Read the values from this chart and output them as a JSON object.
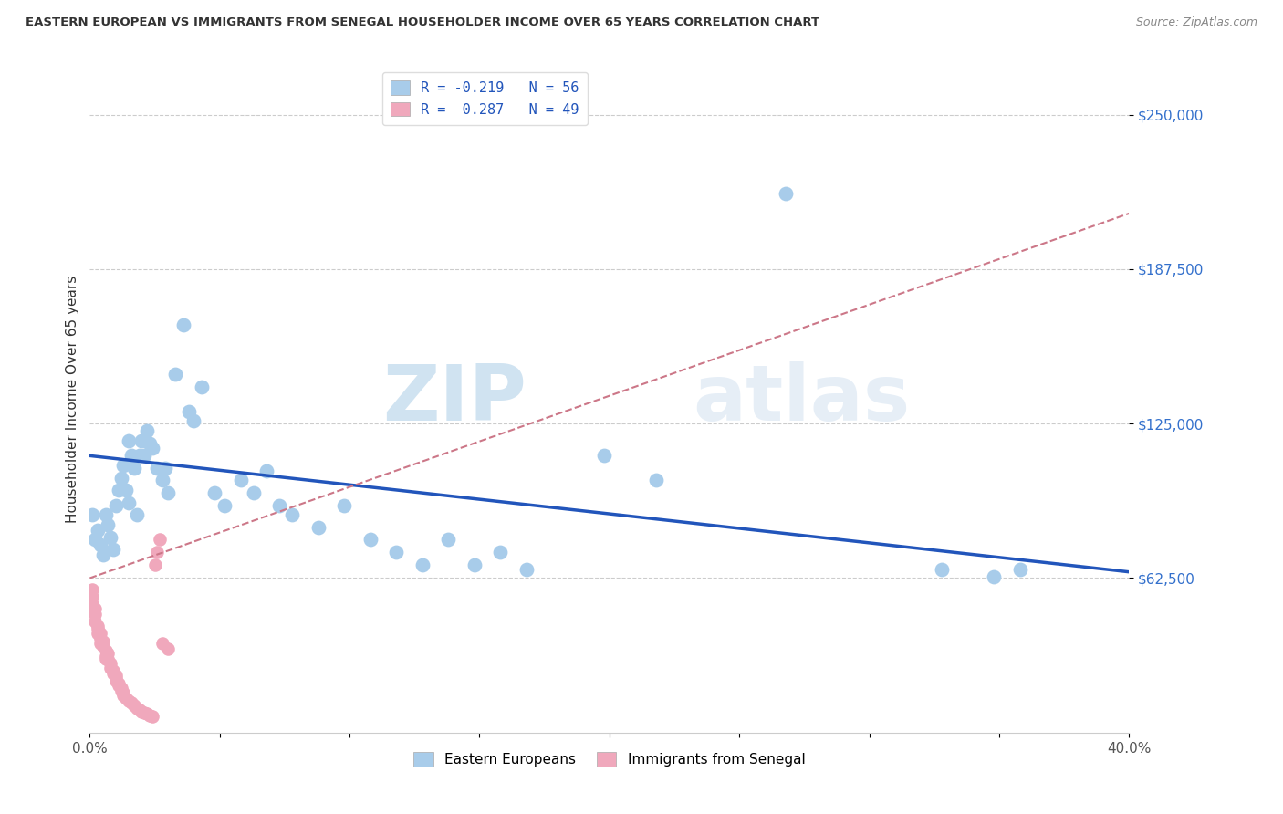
{
  "title": "EASTERN EUROPEAN VS IMMIGRANTS FROM SENEGAL HOUSEHOLDER INCOME OVER 65 YEARS CORRELATION CHART",
  "source": "Source: ZipAtlas.com",
  "ylabel": "Householder Income Over 65 years",
  "xlim": [
    0.0,
    0.4
  ],
  "ylim": [
    0,
    270000
  ],
  "yticks": [
    62500,
    125000,
    187500,
    250000
  ],
  "ytick_labels": [
    "$62,500",
    "$125,000",
    "$187,500",
    "$250,000"
  ],
  "xticks": [
    0.0,
    0.05,
    0.1,
    0.15,
    0.2,
    0.25,
    0.3,
    0.35,
    0.4
  ],
  "xtick_labels": [
    "0.0%",
    "",
    "",
    "",
    "",
    "",
    "",
    "",
    "40.0%"
  ],
  "legend_r1": "R = -0.219   N = 56",
  "legend_r2": "R =  0.287   N = 49",
  "watermark_zip": "ZIP",
  "watermark_atlas": "atlas",
  "blue_color": "#a8ccea",
  "pink_color": "#f0a8bc",
  "blue_line_color": "#2255bb",
  "pink_line_color": "#cc7788",
  "blue_scatter": [
    [
      0.001,
      88000
    ],
    [
      0.002,
      78000
    ],
    [
      0.003,
      82000
    ],
    [
      0.004,
      76000
    ],
    [
      0.005,
      72000
    ],
    [
      0.006,
      88000
    ],
    [
      0.007,
      84000
    ],
    [
      0.008,
      79000
    ],
    [
      0.009,
      74000
    ],
    [
      0.01,
      92000
    ],
    [
      0.011,
      98000
    ],
    [
      0.012,
      103000
    ],
    [
      0.013,
      108000
    ],
    [
      0.014,
      98000
    ],
    [
      0.015,
      93000
    ],
    [
      0.015,
      118000
    ],
    [
      0.016,
      112000
    ],
    [
      0.017,
      107000
    ],
    [
      0.018,
      88000
    ],
    [
      0.019,
      112000
    ],
    [
      0.02,
      118000
    ],
    [
      0.021,
      112000
    ],
    [
      0.022,
      122000
    ],
    [
      0.023,
      117000
    ],
    [
      0.024,
      115000
    ],
    [
      0.026,
      107000
    ],
    [
      0.028,
      102000
    ],
    [
      0.029,
      107000
    ],
    [
      0.03,
      97000
    ],
    [
      0.033,
      145000
    ],
    [
      0.036,
      165000
    ],
    [
      0.038,
      130000
    ],
    [
      0.04,
      126000
    ],
    [
      0.043,
      140000
    ],
    [
      0.048,
      97000
    ],
    [
      0.052,
      92000
    ],
    [
      0.058,
      102000
    ],
    [
      0.063,
      97000
    ],
    [
      0.068,
      106000
    ],
    [
      0.073,
      92000
    ],
    [
      0.078,
      88000
    ],
    [
      0.088,
      83000
    ],
    [
      0.098,
      92000
    ],
    [
      0.108,
      78000
    ],
    [
      0.118,
      73000
    ],
    [
      0.128,
      68000
    ],
    [
      0.138,
      78000
    ],
    [
      0.148,
      68000
    ],
    [
      0.158,
      73000
    ],
    [
      0.168,
      66000
    ],
    [
      0.198,
      112000
    ],
    [
      0.218,
      102000
    ],
    [
      0.268,
      218000
    ],
    [
      0.328,
      66000
    ],
    [
      0.348,
      63000
    ],
    [
      0.358,
      66000
    ]
  ],
  "pink_scatter": [
    [
      0.001,
      58000
    ],
    [
      0.001,
      55000
    ],
    [
      0.001,
      52000
    ],
    [
      0.002,
      50000
    ],
    [
      0.002,
      48000
    ],
    [
      0.002,
      45000
    ],
    [
      0.003,
      43000
    ],
    [
      0.003,
      40000
    ],
    [
      0.003,
      42000
    ],
    [
      0.004,
      40000
    ],
    [
      0.004,
      38000
    ],
    [
      0.004,
      36000
    ],
    [
      0.005,
      35000
    ],
    [
      0.005,
      37000
    ],
    [
      0.005,
      35000
    ],
    [
      0.006,
      33000
    ],
    [
      0.006,
      31000
    ],
    [
      0.006,
      30000
    ],
    [
      0.007,
      32000
    ],
    [
      0.007,
      30000
    ],
    [
      0.008,
      28000
    ],
    [
      0.008,
      26000
    ],
    [
      0.009,
      25000
    ],
    [
      0.009,
      24000
    ],
    [
      0.01,
      23000
    ],
    [
      0.01,
      22000
    ],
    [
      0.01,
      21000
    ],
    [
      0.011,
      20000
    ],
    [
      0.011,
      19000
    ],
    [
      0.012,
      18000
    ],
    [
      0.012,
      17000
    ],
    [
      0.013,
      16000
    ],
    [
      0.013,
      15000
    ],
    [
      0.014,
      14000
    ],
    [
      0.015,
      13000
    ],
    [
      0.016,
      12000
    ],
    [
      0.017,
      11000
    ],
    [
      0.018,
      10000
    ],
    [
      0.019,
      9000
    ],
    [
      0.02,
      8500
    ],
    [
      0.021,
      8000
    ],
    [
      0.022,
      7500
    ],
    [
      0.023,
      7000
    ],
    [
      0.024,
      6500
    ],
    [
      0.025,
      68000
    ],
    [
      0.026,
      73000
    ],
    [
      0.027,
      78000
    ],
    [
      0.028,
      36000
    ],
    [
      0.03,
      34000
    ]
  ]
}
